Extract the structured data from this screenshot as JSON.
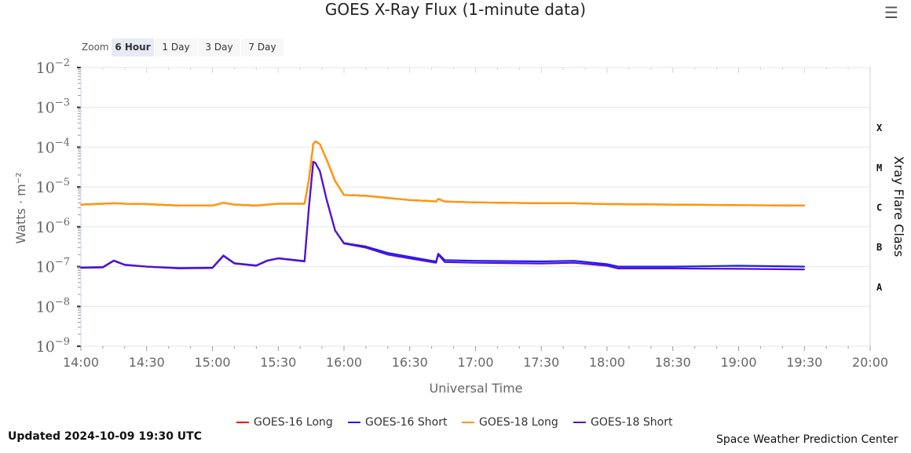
{
  "title": "GOES X-Ray Flux (1-minute data)",
  "menu_icon": "hamburger-menu-icon",
  "zoom": {
    "label": "Zoom",
    "buttons": [
      "6 Hour",
      "1 Day",
      "3 Day",
      "7 Day"
    ],
    "selected": "6 Hour"
  },
  "legend": [
    {
      "name": "GOES-16 Long",
      "color": "#ff0000"
    },
    {
      "name": "GOES-16 Short",
      "color": "#1a1aff"
    },
    {
      "name": "GOES-18 Long",
      "color": "#ff9900"
    },
    {
      "name": "GOES-18 Short",
      "color": "#5511cc"
    }
  ],
  "updated": "Updated 2024-10-09 19:30 UTC",
  "credit": "Space Weather Prediction Center",
  "chart_data": {
    "type": "line",
    "xlabel": "Universal Time",
    "ylabel": "Watts · m⁻²",
    "y2label": "Xray Flare Class",
    "yscale": "log",
    "ylim": [
      1e-09,
      0.01
    ],
    "yticks": [
      {
        "base": "10",
        "exp": "−9"
      },
      {
        "base": "10",
        "exp": "−8"
      },
      {
        "base": "10",
        "exp": "−7"
      },
      {
        "base": "10",
        "exp": "−6"
      },
      {
        "base": "10",
        "exp": "−5"
      },
      {
        "base": "10",
        "exp": "−4"
      },
      {
        "base": "10",
        "exp": "−3"
      },
      {
        "base": "10",
        "exp": "−2"
      }
    ],
    "xlim": [
      "14:00",
      "20:00"
    ],
    "xticks": [
      "14:00",
      "14:30",
      "15:00",
      "15:30",
      "16:00",
      "16:30",
      "17:00",
      "17:30",
      "18:00",
      "18:30",
      "19:00",
      "19:30",
      "20:00"
    ],
    "flare_classes": [
      "A",
      "B",
      "C",
      "M",
      "X"
    ],
    "grid": true,
    "legend_position": "bottom",
    "x": [
      "14:00",
      "14:10",
      "14:15",
      "14:20",
      "14:30",
      "14:45",
      "15:00",
      "15:05",
      "15:10",
      "15:20",
      "15:25",
      "15:30",
      "15:42",
      "15:44",
      "15:46",
      "15:47",
      "15:49",
      "15:52",
      "15:56",
      "16:00",
      "16:10",
      "16:20",
      "16:30",
      "16:40",
      "16:42",
      "16:43",
      "16:46",
      "17:00",
      "17:30",
      "17:45",
      "18:00",
      "18:05",
      "18:30",
      "19:00",
      "19:30"
    ],
    "series": [
      {
        "name": "GOES-16 Long",
        "values": [
          3.6e-06,
          3.8e-06,
          3.9e-06,
          3.8e-06,
          3.7e-06,
          3.4e-06,
          3.4e-06,
          4e-06,
          3.6e-06,
          3.4e-06,
          3.6e-06,
          3.8e-06,
          3.8e-06,
          1.5e-05,
          0.00012,
          0.00014,
          0.00012,
          5e-05,
          1.4e-05,
          6.3e-06,
          6e-06,
          5.3e-06,
          4.7e-06,
          4.4e-06,
          4.3e-06,
          5e-06,
          4.3e-06,
          4.1e-06,
          3.9e-06,
          3.9e-06,
          3.7e-06,
          3.7e-06,
          3.6e-06,
          3.5e-06,
          3.4e-06
        ]
      },
      {
        "name": "GOES-16 Short",
        "values": [
          9.5e-08,
          9.7e-08,
          1.42e-07,
          1.12e-07,
          1e-07,
          9.2e-08,
          9.4e-08,
          1.9e-07,
          1.22e-07,
          1.07e-07,
          1.42e-07,
          1.62e-07,
          1.38e-07,
          3e-06,
          4.3e-05,
          4e-05,
          2.5e-05,
          5e-06,
          8e-07,
          3.9e-07,
          3.2e-07,
          2.2e-07,
          1.75e-07,
          1.4e-07,
          1.35e-07,
          2.1e-07,
          1.45e-07,
          1.4e-07,
          1.35e-07,
          1.4e-07,
          1.15e-07,
          1e-07,
          1e-07,
          1.05e-07,
          1e-07
        ]
      },
      {
        "name": "GOES-18 Long",
        "values": [
          3.6e-06,
          3.8e-06,
          3.9e-06,
          3.8e-06,
          3.7e-06,
          3.4e-06,
          3.4e-06,
          4e-06,
          3.6e-06,
          3.4e-06,
          3.6e-06,
          3.8e-06,
          3.8e-06,
          1.5e-05,
          0.00012,
          0.00014,
          0.00012,
          5e-05,
          1.4e-05,
          6.3e-06,
          6e-06,
          5.3e-06,
          4.7e-06,
          4.4e-06,
          4.3e-06,
          5e-06,
          4.3e-06,
          4.1e-06,
          3.9e-06,
          3.9e-06,
          3.7e-06,
          3.7e-06,
          3.6e-06,
          3.5e-06,
          3.4e-06
        ]
      },
      {
        "name": "GOES-18 Short",
        "values": [
          9.3e-08,
          9.5e-08,
          1.4e-07,
          1.1e-07,
          1e-07,
          9e-08,
          9.2e-08,
          1.85e-07,
          1.2e-07,
          1.05e-07,
          1.4e-07,
          1.6e-07,
          1.35e-07,
          3e-06,
          4.3e-05,
          4e-05,
          2.5e-05,
          5e-06,
          8e-07,
          3.8e-07,
          3e-07,
          2e-07,
          1.6e-07,
          1.3e-07,
          1.25e-07,
          2e-07,
          1.3e-07,
          1.25e-07,
          1.2e-07,
          1.25e-07,
          1.05e-07,
          9e-08,
          9e-08,
          8.8e-08,
          8.5e-08
        ]
      }
    ]
  }
}
